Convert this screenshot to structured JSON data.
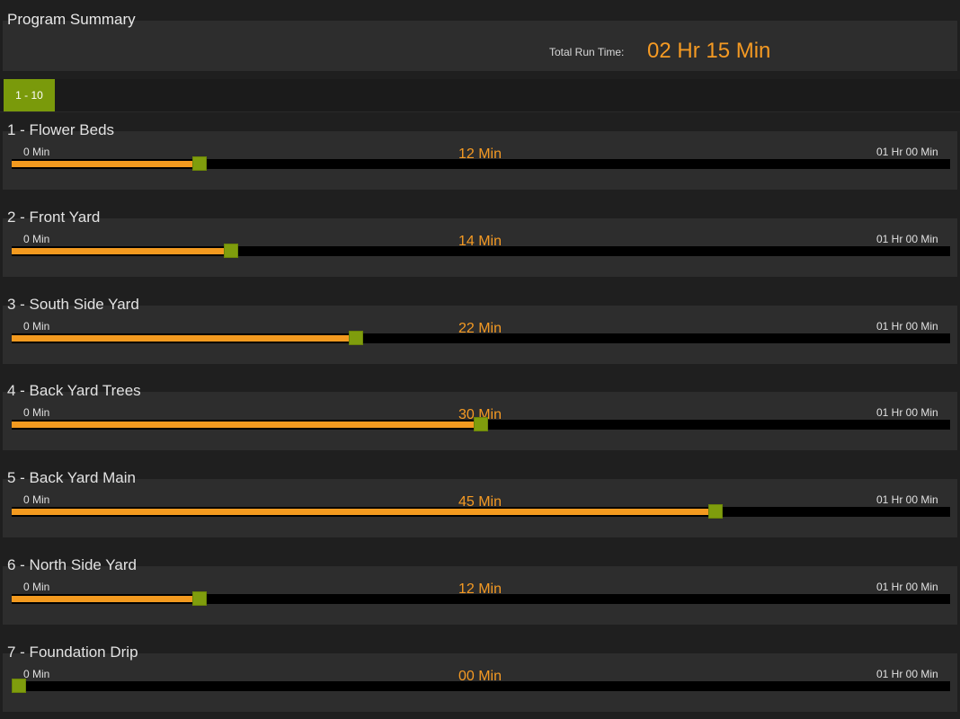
{
  "summary": {
    "title": "Program Summary",
    "total_label": "Total Run Time:",
    "total_value": "02 Hr 15 Min"
  },
  "tabs": [
    {
      "label": "1 - 10",
      "active": true
    }
  ],
  "slider_scale": {
    "min_label": "0 Min",
    "max_label": "01 Hr 00 Min",
    "min_minutes": 0,
    "max_minutes": 60
  },
  "zones": [
    {
      "name": "1 - Flower Beds",
      "value_label": "12 Min",
      "minutes": 12
    },
    {
      "name": "2 - Front Yard",
      "value_label": "14 Min",
      "minutes": 14
    },
    {
      "name": "3 - South Side Yard",
      "value_label": "22 Min",
      "minutes": 22
    },
    {
      "name": "4 - Back Yard Trees",
      "value_label": "30 Min",
      "minutes": 30
    },
    {
      "name": "5 - Back Yard Main",
      "value_label": "45 Min",
      "minutes": 45
    },
    {
      "name": "6 - North Side Yard",
      "value_label": "12 Min",
      "minutes": 12
    },
    {
      "name": "7 - Foundation Drip",
      "value_label": "00 Min",
      "minutes": 0
    }
  ],
  "colors": {
    "accent": "#f59a23",
    "handle": "#7f9d0d",
    "tab_active": "#7a9a0b",
    "panel": "#2d2d2d",
    "background": "#1f1f1f"
  }
}
